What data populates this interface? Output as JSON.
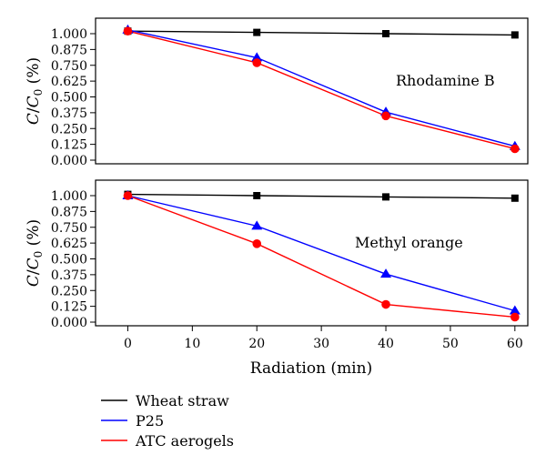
{
  "chart_data": [
    {
      "type": "line",
      "panel": "top",
      "annotation": "Rhodamine B",
      "ylabel": "C/C0 (%)",
      "ylim": [
        0.0,
        1.05
      ],
      "yticks": [
        "1.000",
        "0.875",
        "0.750",
        "0.625",
        "0.500",
        "0.375",
        "0.250",
        "0.125",
        "0.000"
      ],
      "x": [
        0,
        20,
        40,
        60
      ],
      "series": [
        {
          "name": "Wheat straw",
          "color": "#000000",
          "marker": "square",
          "values": [
            1.02,
            1.01,
            1.0,
            0.99
          ]
        },
        {
          "name": "P25",
          "color": "#0000ff",
          "marker": "triangle",
          "values": [
            1.03,
            0.81,
            0.38,
            0.11
          ]
        },
        {
          "name": "ATC aerogels",
          "color": "#ff0000",
          "marker": "circle",
          "values": [
            1.02,
            0.77,
            0.35,
            0.09
          ]
        }
      ]
    },
    {
      "type": "line",
      "panel": "bottom",
      "annotation": "Methyl orange",
      "ylabel": "C/C0 (%)",
      "xlabel": "Radiation (min)",
      "ylim": [
        0.0,
        1.05
      ],
      "xlim": [
        -5,
        62
      ],
      "xticks": [
        "0",
        "10",
        "20",
        "30",
        "40",
        "50",
        "60"
      ],
      "yticks": [
        "1.000",
        "0.875",
        "0.750",
        "0.625",
        "0.500",
        "0.375",
        "0.250",
        "0.125",
        "0.000"
      ],
      "x": [
        0,
        20,
        40,
        60
      ],
      "series": [
        {
          "name": "Wheat straw",
          "color": "#000000",
          "marker": "square",
          "values": [
            1.01,
            1.0,
            0.99,
            0.98
          ]
        },
        {
          "name": "P25",
          "color": "#0000ff",
          "marker": "triangle",
          "values": [
            1.0,
            0.76,
            0.38,
            0.09
          ]
        },
        {
          "name": "ATC aerogels",
          "color": "#ff0000",
          "marker": "circle",
          "values": [
            1.0,
            0.62,
            0.14,
            0.04
          ]
        }
      ]
    }
  ],
  "legend": {
    "items": [
      {
        "label": "Wheat straw",
        "color": "#000000"
      },
      {
        "label": "P25",
        "color": "#0000ff"
      },
      {
        "label": "ATC aerogels",
        "color": "#ff0000"
      }
    ]
  }
}
